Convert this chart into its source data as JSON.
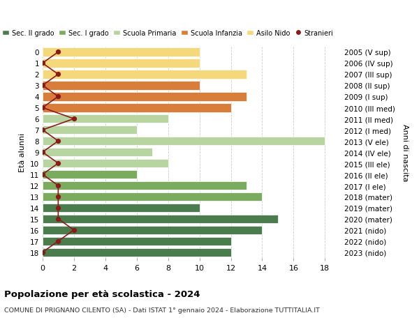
{
  "ages": [
    18,
    17,
    16,
    15,
    14,
    13,
    12,
    11,
    10,
    9,
    8,
    7,
    6,
    5,
    4,
    3,
    2,
    1,
    0
  ],
  "years": [
    "2005 (V sup)",
    "2006 (IV sup)",
    "2007 (III sup)",
    "2008 (II sup)",
    "2009 (I sup)",
    "2010 (III med)",
    "2011 (II med)",
    "2012 (I med)",
    "2013 (V ele)",
    "2014 (IV ele)",
    "2015 (III ele)",
    "2016 (II ele)",
    "2017 (I ele)",
    "2018 (mater)",
    "2019 (mater)",
    "2020 (mater)",
    "2021 (nido)",
    "2022 (nido)",
    "2023 (nido)"
  ],
  "bar_values": [
    12,
    12,
    14,
    15,
    10,
    14,
    13,
    6,
    8,
    7,
    18,
    6,
    8,
    12,
    13,
    10,
    13,
    10,
    10
  ],
  "bar_colors": [
    "#4a7c4e",
    "#4a7c4e",
    "#4a7c4e",
    "#4a7c4e",
    "#4a7c4e",
    "#7aab5e",
    "#7aab5e",
    "#7aab5e",
    "#b8d4a0",
    "#b8d4a0",
    "#b8d4a0",
    "#b8d4a0",
    "#b8d4a0",
    "#d97d3a",
    "#d97d3a",
    "#d97d3a",
    "#f5d87a",
    "#f5d87a",
    "#f5d87a"
  ],
  "stranieri_values": [
    0,
    1,
    2,
    1,
    1,
    1,
    1,
    0,
    1,
    0,
    1,
    0,
    2,
    0,
    1,
    0,
    1,
    0,
    1
  ],
  "title": "Popolazione per età scolastica - 2024",
  "subtitle": "COMUNE DI PRIGNANO CILENTO (SA) - Dati ISTAT 1° gennaio 2024 - Elaborazione TUTTITALIA.IT",
  "ylabel_left": "Età alunni",
  "ylabel_right": "Anni di nascita",
  "xlim": [
    0,
    19
  ],
  "xticks": [
    0,
    2,
    4,
    6,
    8,
    10,
    12,
    14,
    16,
    18
  ],
  "legend_labels": [
    "Sec. II grado",
    "Sec. I grado",
    "Scuola Primaria",
    "Scuola Infanzia",
    "Asilo Nido",
    "Stranieri"
  ],
  "legend_colors": [
    "#4a7c4e",
    "#7aab5e",
    "#b8d4a0",
    "#d97d3a",
    "#f5d87a",
    "#8b1a1a"
  ],
  "bar_height": 0.78,
  "background_color": "#ffffff",
  "grid_color": "#cccccc",
  "stranieri_line_color": "#8b1a1a",
  "stranieri_dot_color": "#8b1a1a"
}
